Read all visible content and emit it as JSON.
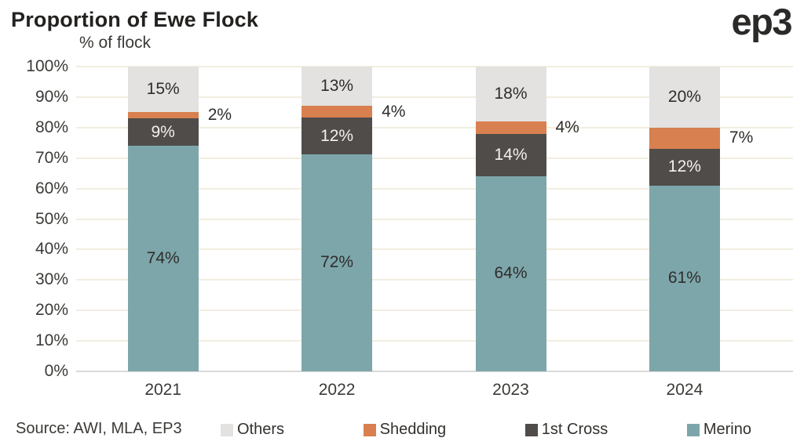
{
  "header": {
    "title": "Proportion of Ewe Flock",
    "logo": "ep3"
  },
  "source": {
    "text": "Source: AWI, MLA, EP3"
  },
  "chart_data": {
    "type": "bar",
    "stacked": true,
    "title": "Proportion of Ewe Flock",
    "ylabel": "% of flock",
    "xlabel": "",
    "categories": [
      "2021",
      "2022",
      "2023",
      "2024"
    ],
    "series": [
      {
        "name": "Merino",
        "color": "#7da6aa",
        "values": [
          74,
          72,
          64,
          61
        ],
        "label_placement": "inside",
        "label_color": "dark"
      },
      {
        "name": "1st Cross",
        "color": "#4f4c4a",
        "values": [
          9,
          12,
          14,
          12
        ],
        "label_placement": "inside",
        "label_color": "light"
      },
      {
        "name": "Shedding",
        "color": "#d8804f",
        "values": [
          2,
          4,
          4,
          7
        ],
        "label_placement": "outside-right",
        "label_color": "dark"
      },
      {
        "name": "Others",
        "color": "#e3e2e0",
        "values": [
          15,
          13,
          18,
          20
        ],
        "label_placement": "inside",
        "label_color": "dark"
      }
    ],
    "data_label_suffix": "%",
    "ylim": [
      0,
      100
    ],
    "yticks": [
      "0%",
      "10%",
      "20%",
      "30%",
      "40%",
      "50%",
      "60%",
      "70%",
      "80%",
      "90%",
      "100%"
    ],
    "grid": true,
    "gridline_color": "#f1eee1",
    "baseline_color": "#d9d9d9",
    "legend_position": "bottom",
    "legend_order": [
      "Others",
      "Shedding",
      "1st Cross",
      "Merino"
    ]
  }
}
